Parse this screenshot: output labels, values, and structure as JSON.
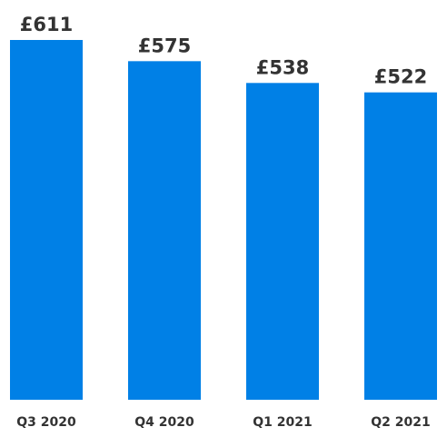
{
  "chart_data": {
    "type": "bar",
    "categories": [
      "Q3 2020",
      "Q4 2020",
      "Q1 2021",
      "Q2 2021"
    ],
    "values": [
      611,
      575,
      538,
      522
    ],
    "data_labels": [
      "£611",
      "£575",
      "£538",
      "£522"
    ],
    "title": "",
    "xlabel": "",
    "ylabel": "",
    "ylim": [
      0,
      611
    ],
    "grid": false,
    "legend": "none",
    "bar_color": "#0080E6"
  }
}
